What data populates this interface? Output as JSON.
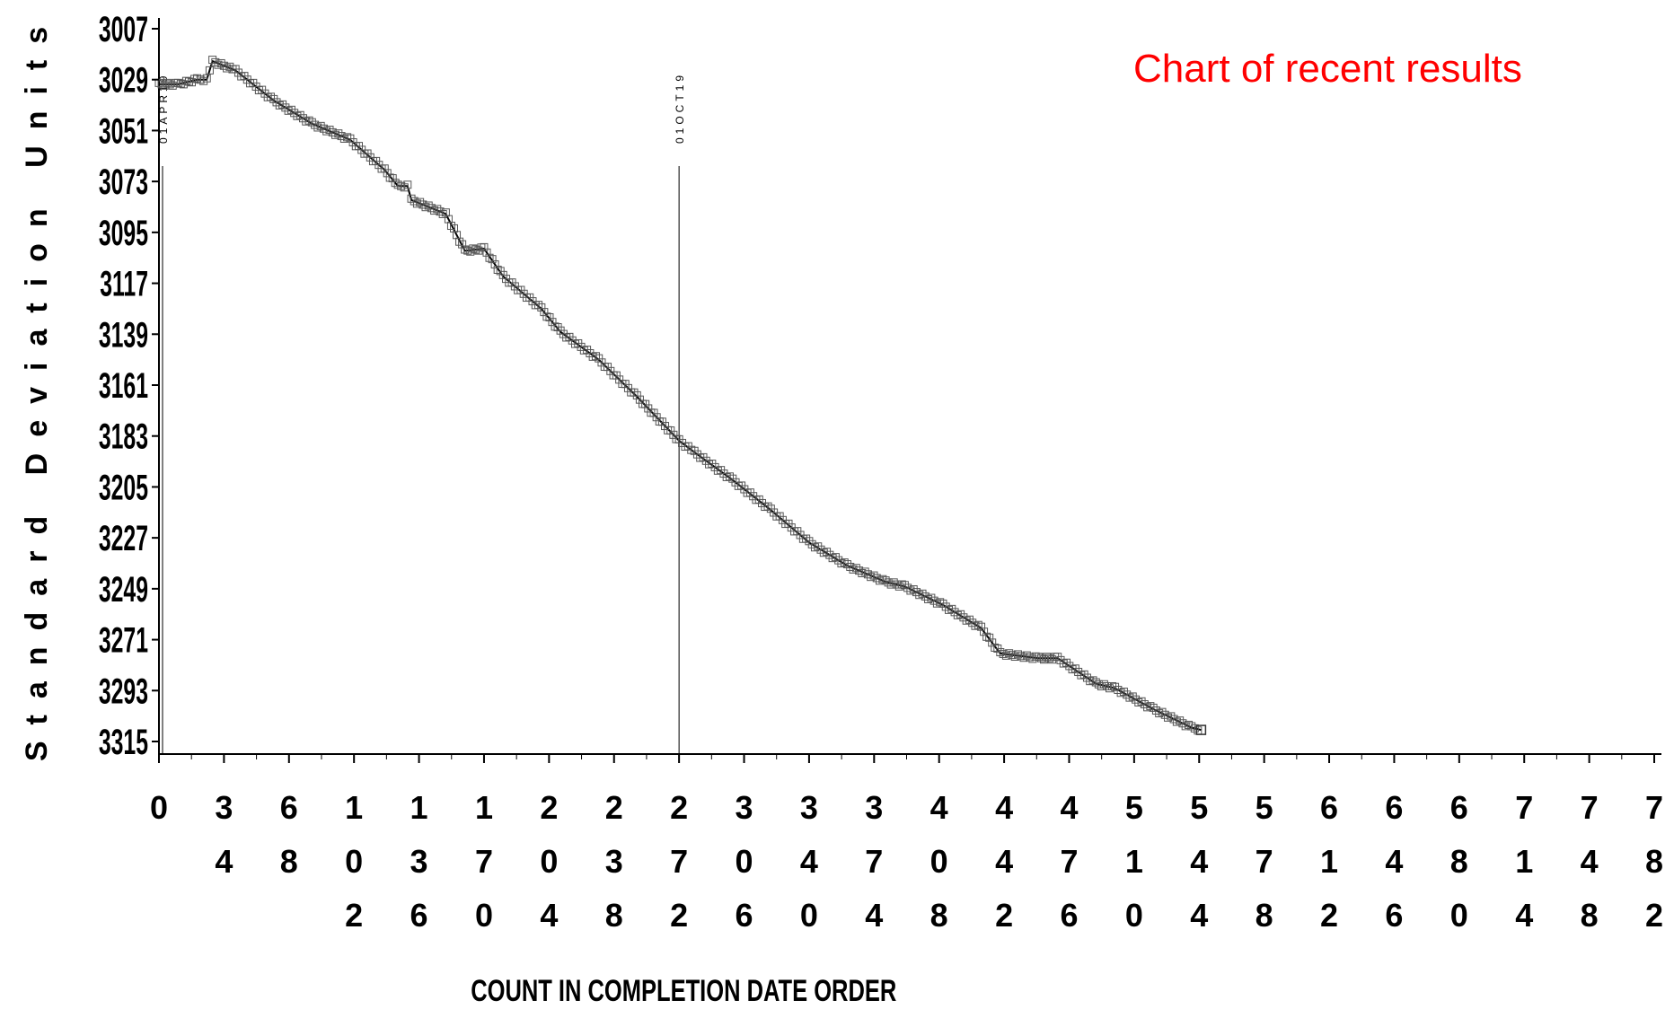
{
  "chart_data": {
    "type": "line",
    "title": "Chart of recent results",
    "xlabel": "COUNT IN COMPLETION DATE ORDER",
    "ylabel": "Standard Deviation Units",
    "xlim": [
      0,
      782
    ],
    "ylim": [
      3007,
      3315
    ],
    "y_inverted": true,
    "x_ticks": [
      0,
      34,
      68,
      102,
      136,
      170,
      204,
      238,
      272,
      306,
      340,
      374,
      408,
      442,
      476,
      510,
      544,
      578,
      612,
      646,
      680,
      714,
      748,
      782
    ],
    "y_ticks": [
      3007,
      3029,
      3051,
      3073,
      3095,
      3117,
      3139,
      3161,
      3183,
      3205,
      3227,
      3249,
      3271,
      3293,
      3315
    ],
    "reference_lines": [
      {
        "x": 0,
        "label": "01APR19"
      },
      {
        "x": 272,
        "label": "01OCT19"
      }
    ],
    "series": [
      {
        "marker": "square",
        "x": [
          0,
          10,
          20,
          25,
          28,
          40,
          60,
          80,
          100,
          118,
          125,
          130,
          132,
          150,
          160,
          170,
          180,
          200,
          210,
          230,
          250,
          272,
          280,
          300,
          320,
          340,
          360,
          380,
          390,
          410,
          430,
          440,
          460,
          470,
          490,
          500,
          520,
          540,
          545
        ],
        "y": [
          3031,
          3031,
          3029,
          3029,
          3021,
          3025,
          3038,
          3048,
          3055,
          3068,
          3075,
          3075,
          3081,
          3087,
          3103,
          3102,
          3114,
          3128,
          3138,
          3150,
          3166,
          3185,
          3190,
          3202,
          3215,
          3229,
          3239,
          3246,
          3248,
          3256,
          3266,
          3277,
          3279,
          3279,
          3290,
          3292,
          3301,
          3309,
          3310
        ]
      }
    ]
  }
}
